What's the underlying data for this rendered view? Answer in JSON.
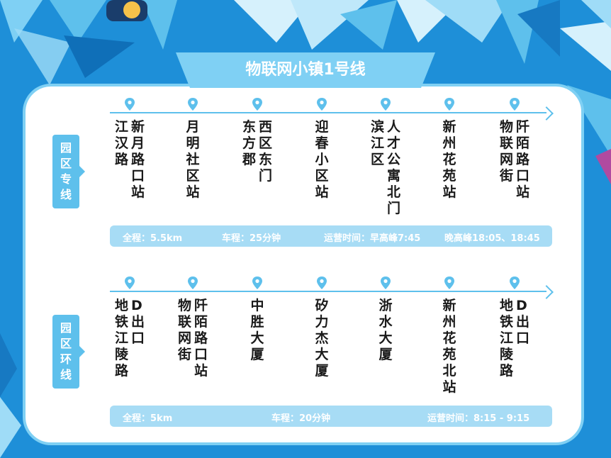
{
  "title": "物联网小镇1号线",
  "colors": {
    "background": "#1e8fd8",
    "accent": "#5ec0ec",
    "card": "#ffffff",
    "info_bar": "#a7dcf5"
  },
  "routes": [
    {
      "tag": [
        "园",
        "区",
        "专",
        "线"
      ],
      "stops": [
        {
          "cols": [
            "新月路口站",
            "江汉路"
          ]
        },
        {
          "cols": [
            "月明社区站"
          ]
        },
        {
          "cols": [
            "西区东门",
            "东方郡"
          ]
        },
        {
          "cols": [
            "迎春小区站"
          ]
        },
        {
          "cols": [
            "人才公寓北门",
            "滨江区"
          ]
        },
        {
          "cols": [
            "新州花苑站"
          ]
        },
        {
          "cols": [
            "阡陌路口站",
            "物联网街"
          ]
        }
      ],
      "info": {
        "distance": "全程：5.5km",
        "duration": "车程：25分钟",
        "hours": "运营时间：早高峰7:45",
        "hours2": "晚高峰18:05、18:45"
      }
    },
    {
      "tag": [
        "园",
        "区",
        "环",
        "线"
      ],
      "stops": [
        {
          "cols": [
            "D出口",
            "地铁江陵路"
          ]
        },
        {
          "cols": [
            "阡陌路口站",
            "物联网街"
          ]
        },
        {
          "cols": [
            "中胜大厦"
          ]
        },
        {
          "cols": [
            "矽力杰大厦"
          ]
        },
        {
          "cols": [
            "浙水大厦"
          ]
        },
        {
          "cols": [
            "新州花苑北站"
          ]
        },
        {
          "cols": [
            "D出口",
            "地铁江陵路"
          ]
        }
      ],
      "info": {
        "distance": "全程：5km",
        "duration": "车程：20分钟",
        "hours": "运营时间：8:15 - 9:15"
      }
    }
  ]
}
